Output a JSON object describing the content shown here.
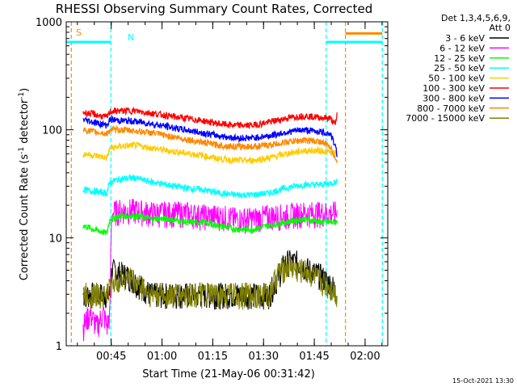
{
  "chart_data": {
    "type": "line",
    "title": "RHESSI Observing Summary Count Rates, Corrected",
    "xlabel": "Start Time (21-May-06 00:31:42)",
    "ylabel_parts": {
      "main": "Corrected Count Rate (s",
      "exp1": "-1",
      "mid": " detector",
      "exp2": "-1",
      "end": ")"
    },
    "yscale": "log",
    "ylim": [
      1,
      1000
    ],
    "xlim_minutes": [
      0,
      95
    ],
    "x_ticks": [
      {
        "label": "00:45",
        "minute": 13.3
      },
      {
        "label": "01:00",
        "minute": 28.3
      },
      {
        "label": "01:15",
        "minute": 43.3
      },
      {
        "label": "01:30",
        "minute": 58.3
      },
      {
        "label": "01:45",
        "minute": 73.3
      },
      {
        "label": "02:00",
        "minute": 88.3
      }
    ],
    "y_ticks": [
      {
        "label": "1",
        "value": 1
      },
      {
        "label": "10",
        "value": 10
      },
      {
        "label": "100",
        "value": 100
      },
      {
        "label": "1000",
        "value": 1000
      }
    ],
    "legend": {
      "header": [
        "Det 1,3,4,5,6,9,",
        "Att 0"
      ],
      "position": "right"
    },
    "series": [
      {
        "name": "3 - 6 keV",
        "color": "#000000",
        "x": [
          5,
          10,
          13,
          13.5,
          18,
          20,
          25,
          30,
          35,
          40,
          45,
          50,
          55,
          57,
          60,
          62,
          65,
          68,
          70,
          72,
          75,
          77,
          79,
          80
        ],
        "y": [
          3,
          3,
          3,
          5,
          4.5,
          4,
          3,
          3,
          3,
          3,
          3,
          3,
          3,
          3,
          3,
          4,
          6,
          6,
          5.5,
          5,
          4.5,
          4,
          3.5,
          3
        ]
      },
      {
        "name": "6 - 12 keV",
        "color": "#ff00ff",
        "x": [
          5,
          7,
          9,
          11,
          12,
          13,
          13.5,
          16,
          20,
          25,
          30,
          35,
          40,
          45,
          50,
          55,
          60,
          65,
          70,
          75,
          78,
          80
        ],
        "y": [
          1.5,
          2,
          1.5,
          2,
          1.5,
          2,
          17,
          18,
          18,
          17,
          17,
          17,
          16,
          16,
          15,
          15,
          16,
          16,
          17,
          17,
          17,
          17
        ]
      },
      {
        "name": "12 - 25 keV",
        "color": "#00ff00",
        "x": [
          5,
          8,
          12,
          13,
          16,
          20,
          25,
          30,
          35,
          40,
          45,
          50,
          55,
          60,
          65,
          70,
          75,
          80
        ],
        "y": [
          13,
          12,
          11,
          15,
          16,
          16,
          15,
          15,
          14,
          14,
          13,
          12,
          12,
          13,
          14,
          15,
          14,
          14
        ]
      },
      {
        "name": "25 - 50 keV",
        "color": "#00ffff",
        "x": [
          5,
          8,
          12,
          13,
          16,
          20,
          25,
          30,
          35,
          40,
          45,
          50,
          55,
          60,
          65,
          70,
          75,
          78,
          80
        ],
        "y": [
          28,
          27,
          26,
          33,
          35,
          36,
          33,
          31,
          29,
          28,
          26,
          25,
          25,
          26,
          29,
          31,
          31,
          32,
          33
        ]
      },
      {
        "name": "50 - 100 keV",
        "color": "#ffcc00",
        "x": [
          5,
          8,
          12,
          13,
          16,
          20,
          25,
          30,
          35,
          40,
          45,
          50,
          55,
          60,
          65,
          70,
          75,
          78,
          80
        ],
        "y": [
          60,
          58,
          55,
          68,
          70,
          72,
          68,
          64,
          61,
          58,
          54,
          52,
          52,
          55,
          60,
          64,
          64,
          62,
          60
        ]
      },
      {
        "name": "100 - 300 keV",
        "color": "#ff0000",
        "x": [
          5,
          8,
          12,
          13,
          16,
          20,
          25,
          30,
          35,
          40,
          45,
          50,
          55,
          60,
          65,
          70,
          75,
          78,
          79.5,
          80
        ],
        "y": [
          145,
          140,
          130,
          148,
          150,
          150,
          143,
          135,
          128,
          122,
          114,
          110,
          110,
          118,
          128,
          135,
          130,
          128,
          110,
          140
        ]
      },
      {
        "name": "300 - 800 keV",
        "color": "#0000ff",
        "x": [
          5,
          8,
          12,
          13,
          16,
          20,
          25,
          30,
          35,
          40,
          45,
          50,
          55,
          60,
          65,
          70,
          75,
          78,
          79.5,
          80
        ],
        "y": [
          125,
          118,
          110,
          125,
          122,
          120,
          114,
          107,
          100,
          94,
          88,
          84,
          84,
          88,
          95,
          100,
          96,
          92,
          70,
          60
        ]
      },
      {
        "name": "800 - 7000 keV",
        "color": "#ff8800",
        "x": [
          5,
          8,
          12,
          13,
          16,
          20,
          25,
          30,
          35,
          40,
          45,
          50,
          55,
          60,
          65,
          70,
          75,
          78,
          79.5,
          80
        ],
        "y": [
          100,
          96,
          92,
          100,
          100,
          98,
          94,
          88,
          82,
          77,
          72,
          70,
          70,
          72,
          77,
          80,
          78,
          70,
          55,
          50
        ]
      },
      {
        "name": "7000 - 15000 keV",
        "color": "#808000",
        "x": [
          5,
          8,
          12,
          14,
          18,
          20,
          25,
          30,
          35,
          40,
          45,
          50,
          55,
          57,
          60,
          63,
          66,
          68,
          70,
          73,
          75,
          78,
          80
        ],
        "y": [
          3,
          3,
          3,
          4,
          4.5,
          4,
          3,
          3,
          3,
          3,
          3,
          3,
          3,
          3,
          3,
          5,
          5.5,
          5,
          5,
          4.5,
          4,
          3.5,
          3
        ]
      }
    ],
    "annotations": [
      {
        "text": "S",
        "color": "#ff8800"
      },
      {
        "text": "N",
        "color": "#00ffff"
      }
    ],
    "vlines": [
      {
        "minute": 1.5,
        "color": "#ff8800"
      },
      {
        "minute": 13.2,
        "color": "#00ffff"
      },
      {
        "minute": 76.8,
        "color": "#00ffff"
      },
      {
        "minute": 82.5,
        "color": "#ff8800"
      },
      {
        "minute": 93.4,
        "color": "#00ffff"
      }
    ],
    "hbars": [
      {
        "from": 0,
        "to": 13.2,
        "value": 650,
        "color": "#00ffff"
      },
      {
        "from": 76.8,
        "to": 93.4,
        "value": 650,
        "color": "#00ffff"
      },
      {
        "from": 82.5,
        "to": 93.4,
        "value": 780,
        "color": "#ff8800"
      }
    ]
  },
  "footer": {
    "timestamp": "15-Oct-2021 13:30"
  },
  "colors": {
    "background": "#ffffff",
    "axis": "#000000"
  }
}
